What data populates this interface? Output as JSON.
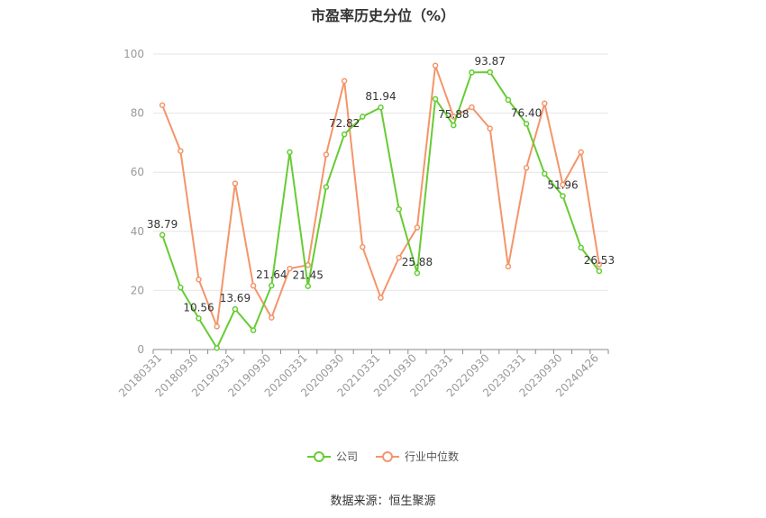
{
  "chart_data": {
    "type": "line",
    "title": "市盈率历史分位（%）",
    "source": "数据来源：恒生聚源",
    "ylim": [
      0,
      100
    ],
    "yticks": [
      0,
      20,
      40,
      60,
      80,
      100
    ],
    "grid": true,
    "legend_position": "bottom",
    "x": [
      "20180331",
      "20180630",
      "20180930",
      "20181231",
      "20190331",
      "20190630",
      "20190930",
      "20191231",
      "20200331",
      "20200630",
      "20200930",
      "20201231",
      "20210331",
      "20210630",
      "20210930",
      "20211231",
      "20220331",
      "20220630",
      "20220930",
      "20221231",
      "20230331",
      "20230630",
      "20230930",
      "20231231",
      "20240426"
    ],
    "x_tick_labels": [
      "20180331",
      "20180930",
      "20190331",
      "20190930",
      "20200331",
      "20200930",
      "20210331",
      "20210930",
      "20220331",
      "20220930",
      "20230331",
      "20230930",
      "20240426"
    ],
    "series": [
      {
        "name": "公司",
        "color": "#66cc33",
        "values": [
          38.79,
          21,
          10.56,
          0.5,
          13.69,
          6.5,
          21.64,
          66.8,
          21.45,
          55,
          72.82,
          78.8,
          81.94,
          47.5,
          25.88,
          84.8,
          75.88,
          93.8,
          93.87,
          84.5,
          76.4,
          59.5,
          51.96,
          34.5,
          26.53
        ],
        "data_labels": [
          {
            "index": 0,
            "text": "38.79"
          },
          {
            "index": 2,
            "text": "10.56"
          },
          {
            "index": 4,
            "text": "13.69"
          },
          {
            "index": 6,
            "text": "21.64"
          },
          {
            "index": 8,
            "text": "21.45"
          },
          {
            "index": 10,
            "text": "72.82"
          },
          {
            "index": 12,
            "text": "81.94"
          },
          {
            "index": 14,
            "text": "25.88"
          },
          {
            "index": 16,
            "text": "75.88"
          },
          {
            "index": 18,
            "text": "93.87"
          },
          {
            "index": 20,
            "text": "76.40"
          },
          {
            "index": 22,
            "text": "51.96"
          },
          {
            "index": 24,
            "text": "26.53"
          }
        ]
      },
      {
        "name": "行业中位数",
        "color": "#f4956a",
        "values": [
          82.7,
          67.2,
          23.7,
          7.8,
          56.2,
          21.6,
          10.8,
          27.4,
          28.6,
          66,
          90.9,
          34.7,
          17.5,
          31.1,
          41.3,
          96.1,
          78.8,
          82,
          74.8,
          28.1,
          61.5,
          83.3,
          55.8,
          66.8,
          28.8
        ]
      }
    ]
  }
}
